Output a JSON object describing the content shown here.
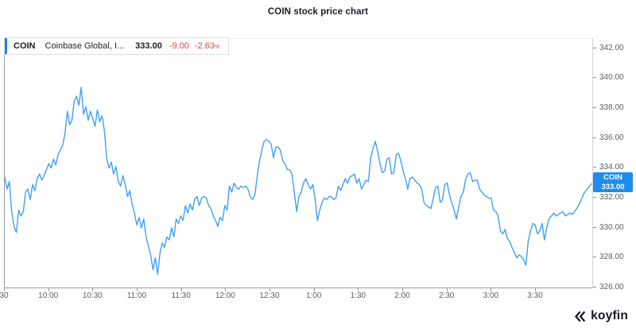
{
  "page": {
    "title": "COIN stock price chart"
  },
  "legend": {
    "ticker": "COIN",
    "name": "Coinbase Global, I...",
    "price": "333.00",
    "change": "-9.00",
    "change_pct": "-2.63",
    "pct_symbol": "%"
  },
  "price_badge": {
    "ticker": "COIN",
    "price": "333.00"
  },
  "branding": {
    "logo_icon": "koyfin-double-chevron-icon",
    "logo_text": "koyfin"
  },
  "colors": {
    "line": "#41a0f3",
    "badge_bg": "#1f8ded",
    "legend_accent": "#1e88e5",
    "negative": "#e04444"
  },
  "chart_data": {
    "type": "line",
    "title": "COIN stock price chart",
    "series_name": "COIN",
    "legend_position": "top-left",
    "grid": false,
    "y_axis": {
      "side": "right",
      "min": 326,
      "max": 342,
      "tick_step": 2,
      "tick_labels": [
        "342.00",
        "340.00",
        "338.00",
        "336.00",
        "334.00",
        "332.00",
        "330.00",
        "328.00",
        "326.00"
      ],
      "tick_values": [
        342,
        340,
        338,
        336,
        334,
        332,
        330,
        328,
        326
      ]
    },
    "x_axis": {
      "tick_minutes": [
        0,
        30,
        60,
        90,
        120,
        150,
        180,
        210,
        240,
        270,
        300,
        330,
        360
      ],
      "tick_labels": [
        "30",
        "10:00",
        "10:30",
        "11:00",
        "11:30",
        "12:00",
        "12:30",
        "1:00",
        "1:30",
        "2:00",
        "2:30",
        "3:00",
        "3:30"
      ],
      "session_minutes": 390
    },
    "last_price": 333.0,
    "open_price": 333.4,
    "high": 339.4,
    "low": 326.9,
    "values": [
      333.4,
      332.6,
      333.1,
      331.1,
      330.1,
      329.7,
      331.2,
      330.8,
      331.1,
      332.4,
      332.6,
      331.9,
      332.9,
      332.5,
      333.3,
      333.6,
      333.2,
      333.5,
      333.9,
      334.3,
      334.0,
      334.6,
      334.2,
      334.9,
      335.2,
      335.5,
      336.3,
      337.8,
      336.9,
      337.2,
      338.5,
      338.8,
      338.2,
      339.4,
      337.6,
      338.1,
      337.2,
      337.8,
      337.3,
      336.8,
      337.9,
      337.1,
      337.5,
      336.5,
      334.7,
      334.0,
      334.4,
      333.6,
      334.1,
      333.1,
      332.8,
      333.5,
      332.9,
      332.1,
      332.5,
      331.6,
      331.0,
      330.2,
      330.7,
      330.0,
      330.6,
      329.4,
      328.8,
      328.2,
      327.2,
      328.0,
      326.9,
      328.3,
      329.0,
      328.7,
      329.4,
      329.2,
      330.0,
      329.4,
      330.6,
      330.3,
      330.8,
      330.5,
      331.5,
      331.0,
      331.6,
      331.2,
      331.9,
      332.1,
      331.5,
      332.0,
      332.1,
      332.0,
      331.5,
      331.3,
      330.8,
      330.5,
      330.1,
      330.7,
      330.5,
      331.5,
      331.2,
      332.8,
      332.4,
      333.0,
      332.7,
      332.6,
      332.8,
      332.7,
      332.8,
      332.6,
      332.1,
      331.9,
      332.2,
      333.5,
      334.5,
      335.2,
      335.8,
      335.9,
      335.8,
      335.6,
      334.7,
      335.4,
      335.4,
      335.2,
      334.5,
      334.3,
      333.9,
      333.9,
      333.6,
      332.4,
      331.1,
      332.1,
      332.4,
      333.0,
      333.3,
      332.9,
      332.6,
      332.9,
      331.9,
      330.5,
      331.2,
      331.7,
      332.0,
      331.9,
      332.1,
      332.1,
      331.9,
      332.0,
      332.8,
      332.5,
      332.9,
      333.3,
      333.0,
      333.4,
      333.5,
      333.6,
      333.0,
      333.3,
      332.6,
      332.9,
      333.2,
      333.1,
      334.7,
      335.3,
      335.8,
      335.1,
      334.3,
      333.7,
      333.8,
      334.6,
      334.7,
      333.6,
      333.7,
      334.9,
      335.0,
      334.5,
      333.8,
      333.3,
      332.6,
      333.3,
      333.4,
      333.2,
      333.0,
      332.9,
      332.6,
      331.7,
      331.5,
      331.4,
      331.3,
      332.0,
      332.7,
      332.8,
      331.7,
      331.9,
      332.9,
      333.0,
      332.2,
      331.7,
      331.2,
      330.6,
      331.4,
      332.1,
      332.4,
      333.3,
      333.6,
      333.7,
      333.1,
      333.2,
      333.2,
      332.6,
      332.4,
      332.2,
      332.1,
      332.0,
      332.0,
      331.2,
      331.1,
      330.8,
      329.8,
      329.6,
      329.9,
      329.3,
      329.1,
      328.7,
      328.4,
      328.0,
      328.2,
      328.1,
      327.9,
      327.5,
      329.1,
      329.8,
      330.3,
      330.2,
      329.6,
      329.8,
      330.3,
      329.2,
      330.0,
      330.6,
      330.8,
      331.0,
      330.8,
      330.9,
      331.0,
      331.1,
      330.8,
      330.9,
      331.0,
      330.9,
      331.1,
      331.3,
      331.6,
      331.9,
      332.3,
      332.5,
      332.7,
      332.9,
      333.0
    ]
  }
}
